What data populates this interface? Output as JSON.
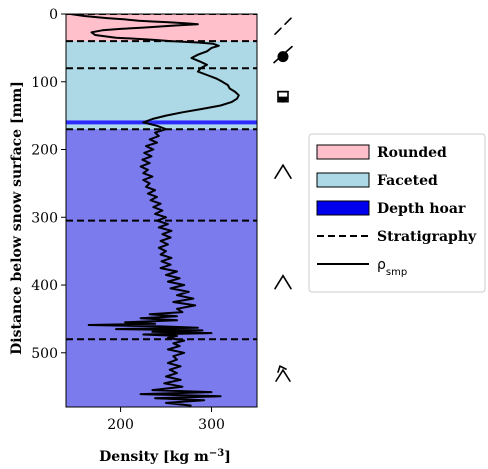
{
  "chart_data": {
    "type": "line",
    "xlabel": "Density [kg m",
    "xlabel_sup": "−3",
    "xlabel_end": "]",
    "ylabel": "Distance below snow surface [mm]",
    "xlim": [
      140,
      350
    ],
    "ylim": [
      0,
      580
    ],
    "y_inverted": true,
    "xticks": [
      {
        "value": 200,
        "label": "200"
      },
      {
        "value": 300,
        "label": "300"
      }
    ],
    "yticks": [
      {
        "value": 0,
        "label": "0"
      },
      {
        "value": 100,
        "label": "100"
      },
      {
        "value": 200,
        "label": "200"
      },
      {
        "value": 300,
        "label": "300"
      },
      {
        "value": 400,
        "label": "400"
      },
      {
        "value": 500,
        "label": "500"
      }
    ],
    "layers": [
      {
        "name": "Rounded",
        "from": 0,
        "to": 40,
        "color": "#ffc0cb"
      },
      {
        "name": "Faceted",
        "from": 40,
        "to": 157,
        "color": "#add8e6"
      },
      {
        "name": "Depth hoar",
        "from": 157,
        "to": 163,
        "color": "#2b2bff"
      },
      {
        "name": "Faceted",
        "from": 163,
        "to": 170,
        "color": "#add8e6"
      },
      {
        "name": "Depth hoar",
        "from": 170,
        "to": 580,
        "color": "#7b7bee"
      }
    ],
    "stratigraphy": [
      0,
      40,
      80,
      170,
      305,
      480
    ],
    "symbols": [
      {
        "name": "decomposing-fragments-icon",
        "y": 18
      },
      {
        "name": "rounding-faceted-icon",
        "y": 60
      },
      {
        "name": "faceted-rounding-icon",
        "y": 122
      },
      {
        "name": "depth-hoar-icon",
        "y": 232
      },
      {
        "name": "depth-hoar-icon",
        "y": 395
      },
      {
        "name": "depth-hoar-rounding-icon",
        "y": 530
      }
    ],
    "legend": {
      "placement": "right",
      "entries": [
        {
          "label": "Rounded",
          "kind": "patch",
          "color": "#ffc0cb"
        },
        {
          "label": "Faceted",
          "kind": "patch",
          "color": "#add8e6"
        },
        {
          "label": "Depth hoar",
          "kind": "patch",
          "color": "#0000ee"
        },
        {
          "label": "Stratigraphy",
          "kind": "dashed"
        },
        {
          "label": "ρ",
          "sub": "smp",
          "kind": "solid"
        }
      ]
    },
    "series": [
      {
        "style": "solid",
        "points": [
          [
            145,
            0
          ],
          [
            160,
            3
          ],
          [
            185,
            6
          ],
          [
            205,
            8
          ],
          [
            220,
            10
          ],
          [
            235,
            11
          ],
          [
            250,
            12
          ],
          [
            262,
            13
          ],
          [
            275,
            14
          ],
          [
            285,
            15
          ],
          [
            260,
            17
          ],
          [
            225,
            20
          ],
          [
            200,
            22
          ],
          [
            180,
            24
          ],
          [
            168,
            27
          ],
          [
            172,
            31
          ],
          [
            195,
            35
          ],
          [
            235,
            38
          ],
          [
            255,
            40
          ],
          [
            285,
            42
          ],
          [
            302,
            44
          ],
          [
            308,
            47
          ],
          [
            300,
            50
          ],
          [
            295,
            55
          ],
          [
            285,
            60
          ],
          [
            278,
            65
          ],
          [
            287,
            70
          ],
          [
            295,
            75
          ],
          [
            288,
            80
          ],
          [
            285,
            85
          ],
          [
            295,
            90
          ],
          [
            305,
            95
          ],
          [
            312,
            100
          ],
          [
            318,
            105
          ],
          [
            320,
            110
          ],
          [
            326,
            115
          ],
          [
            330,
            120
          ],
          [
            328,
            125
          ],
          [
            322,
            130
          ],
          [
            310,
            135
          ],
          [
            290,
            140
          ],
          [
            268,
            145
          ],
          [
            250,
            150
          ],
          [
            235,
            155
          ],
          [
            225,
            160
          ],
          [
            240,
            165
          ],
          [
            250,
            170
          ],
          [
            238,
            175
          ],
          [
            242,
            180
          ],
          [
            232,
            185
          ],
          [
            240,
            190
          ],
          [
            228,
            195
          ],
          [
            236,
            200
          ],
          [
            226,
            205
          ],
          [
            234,
            210
          ],
          [
            224,
            215
          ],
          [
            232,
            220
          ],
          [
            222,
            225
          ],
          [
            230,
            230
          ],
          [
            225,
            235
          ],
          [
            235,
            240
          ],
          [
            225,
            245
          ],
          [
            232,
            250
          ],
          [
            228,
            255
          ],
          [
            238,
            260
          ],
          [
            230,
            265
          ],
          [
            240,
            270
          ],
          [
            233,
            275
          ],
          [
            244,
            280
          ],
          [
            236,
            285
          ],
          [
            246,
            290
          ],
          [
            238,
            295
          ],
          [
            250,
            300
          ],
          [
            240,
            305
          ],
          [
            252,
            310
          ],
          [
            242,
            315
          ],
          [
            256,
            320
          ],
          [
            246,
            325
          ],
          [
            255,
            330
          ],
          [
            244,
            335
          ],
          [
            252,
            340
          ],
          [
            242,
            345
          ],
          [
            250,
            350
          ],
          [
            244,
            355
          ],
          [
            256,
            360
          ],
          [
            245,
            365
          ],
          [
            255,
            370
          ],
          [
            244,
            375
          ],
          [
            262,
            380
          ],
          [
            250,
            385
          ],
          [
            265,
            390
          ],
          [
            252,
            395
          ],
          [
            270,
            400
          ],
          [
            255,
            405
          ],
          [
            275,
            410
          ],
          [
            262,
            415
          ],
          [
            280,
            420
          ],
          [
            258,
            425
          ],
          [
            282,
            430
          ],
          [
            262,
            435
          ],
          [
            268,
            440
          ],
          [
            232,
            443
          ],
          [
            262,
            446
          ],
          [
            222,
            449
          ],
          [
            262,
            452
          ],
          [
            205,
            455
          ],
          [
            238,
            457
          ],
          [
            165,
            459
          ],
          [
            245,
            461
          ],
          [
            285,
            463
          ],
          [
            195,
            465
          ],
          [
            290,
            467
          ],
          [
            235,
            469
          ],
          [
            300,
            471
          ],
          [
            225,
            473
          ],
          [
            262,
            475
          ],
          [
            252,
            478
          ],
          [
            270,
            482
          ],
          [
            258,
            486
          ],
          [
            265,
            490
          ],
          [
            252,
            495
          ],
          [
            270,
            500
          ],
          [
            258,
            505
          ],
          [
            262,
            510
          ],
          [
            252,
            515
          ],
          [
            266,
            520
          ],
          [
            254,
            525
          ],
          [
            262,
            530
          ],
          [
            250,
            535
          ],
          [
            266,
            540
          ],
          [
            248,
            545
          ],
          [
            268,
            550
          ],
          [
            235,
            555
          ],
          [
            300,
            558
          ],
          [
            222,
            561
          ],
          [
            310,
            564
          ],
          [
            238,
            567
          ],
          [
            292,
            570
          ],
          [
            250,
            574
          ],
          [
            278,
            578
          ]
        ]
      }
    ]
  }
}
